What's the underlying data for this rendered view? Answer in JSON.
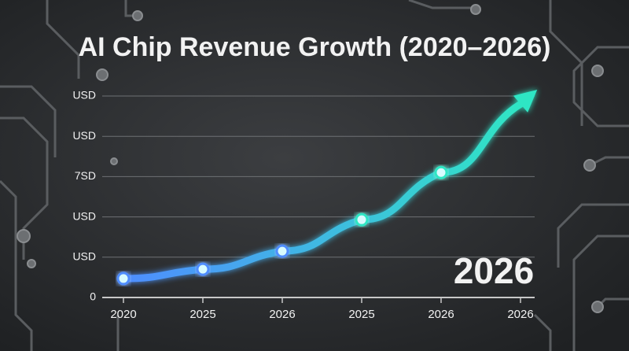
{
  "chart_data": {
    "type": "line",
    "title": "AI Chip Revenue Growth (2020–2026)",
    "annotation": "2026",
    "categories": [
      "2020",
      "2025",
      "2026",
      "2025",
      "2026",
      "2026"
    ],
    "series": [
      {
        "color": "#2fe6c4",
        "start_color": "#4f8dff",
        "values": [
          0.47,
          0.7,
          1.15,
          1.93,
          3.1,
          4.8
        ]
      }
    ],
    "ylim": [
      0,
      5
    ],
    "yticks": [
      0,
      {
        "value": 1,
        "label": "USD"
      },
      {
        "value": 2,
        "label": "USD"
      },
      {
        "value": 3,
        "label": "7SD"
      },
      {
        "value": 4,
        "label": "USD"
      },
      {
        "value": 5,
        "label": "USD"
      }
    ],
    "grid": true
  }
}
